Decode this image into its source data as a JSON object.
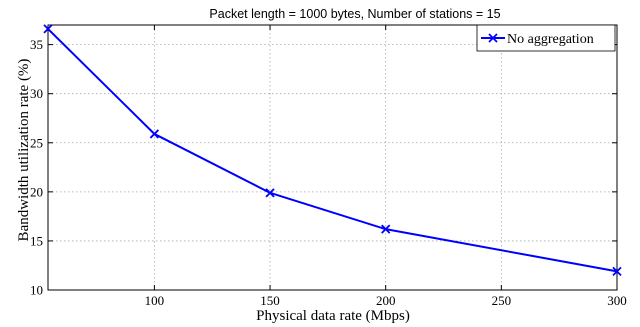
{
  "chart_data": {
    "type": "line",
    "title": "Packet length = 1000 bytes, Number of stations = 15",
    "xlabel": "Physical data rate (Mbps)",
    "ylabel": "Bandwidth utilization rate (%)",
    "xlim": [
      54,
      300
    ],
    "ylim": [
      10,
      37
    ],
    "xticks": [
      100,
      150,
      200,
      250,
      300
    ],
    "yticks": [
      10,
      15,
      20,
      25,
      30,
      35
    ],
    "grid": true,
    "legend_position": "top-right",
    "series": [
      {
        "name": "No aggregation",
        "color": "#0000ff",
        "marker": "x",
        "x": [
          54,
          100,
          150,
          200,
          300
        ],
        "y": [
          36.6,
          25.9,
          19.9,
          16.2,
          11.9
        ]
      }
    ]
  }
}
